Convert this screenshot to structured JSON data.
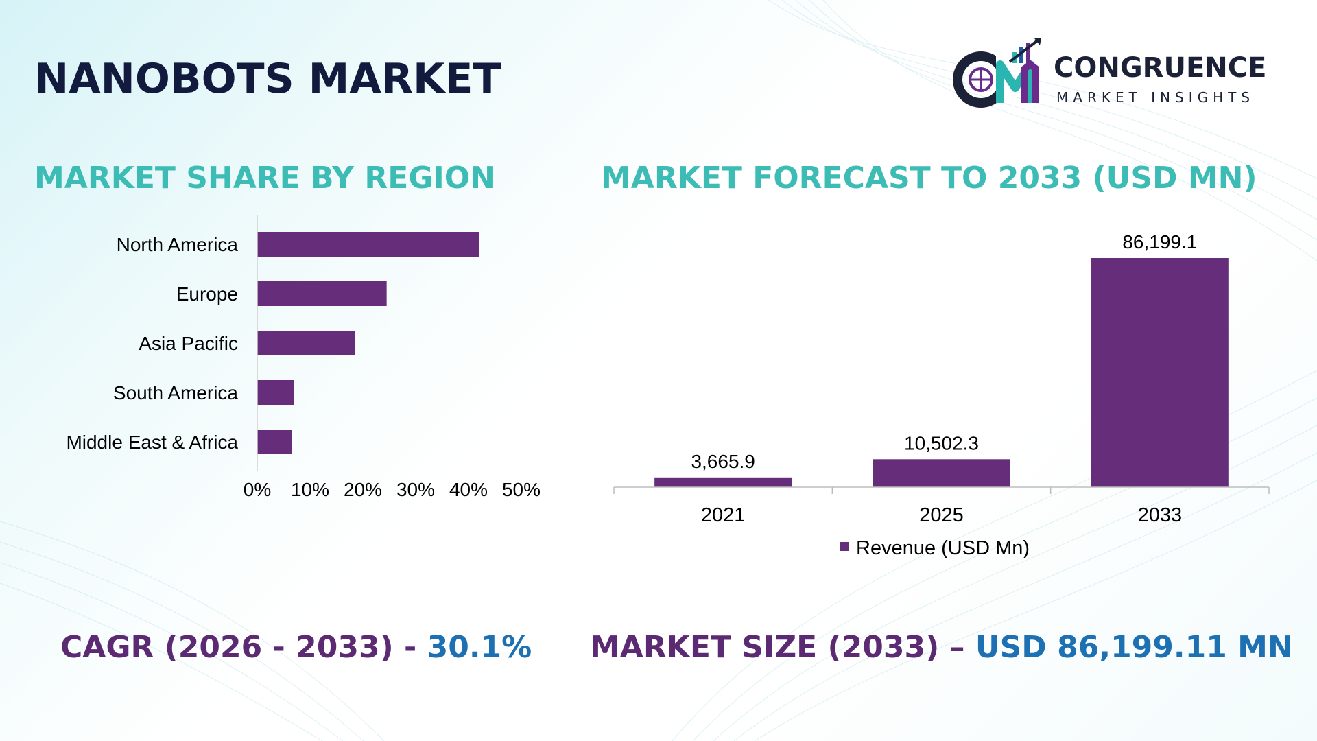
{
  "title": "NANOBOTS MARKET",
  "logo": {
    "name": "CONGRUENCE",
    "subtitle": "MARKET INSIGHTS",
    "mark_text": "CM",
    "colors": {
      "dark": "#1b2238",
      "teal": "#2bb5b0",
      "purple": "#6a2c8c",
      "blue": "#1e5aa8"
    }
  },
  "region_section": {
    "title": "MARKET SHARE BY REGION"
  },
  "forecast_section": {
    "title": "MARKET FORECAST TO 2033 (USD MN)"
  },
  "footer": {
    "cagr_label": "CAGR (2026 - 2033) - ",
    "cagr_value": "30.1%",
    "market_size_label": "MARKET SIZE (2033) – ",
    "market_size_value": "USD 86,199.11 MN"
  },
  "colors": {
    "bar": "#652d7a",
    "heading_teal": "#3cbcb4",
    "stat_purple": "#5b2a72",
    "stat_blue": "#1d70b2",
    "title_navy": "#121a3e"
  },
  "chart_data": [
    {
      "type": "bar",
      "orientation": "horizontal",
      "categories": [
        "North America",
        "Europe",
        "Asia Pacific",
        "South America",
        "Middle East & Africa"
      ],
      "values": [
        42,
        24.5,
        18.5,
        7,
        6.6
      ],
      "unit": "%",
      "xlim": [
        0,
        50
      ],
      "xticks": [
        "0%",
        "10%",
        "20%",
        "30%",
        "40%",
        "50%"
      ],
      "grid": false,
      "legend": "none",
      "color": "#652d7a"
    },
    {
      "type": "bar",
      "orientation": "vertical",
      "categories": [
        "2021",
        "2025",
        "2033"
      ],
      "series": [
        {
          "name": "Revenue (USD Mn)",
          "values": [
            3665.9,
            10502.3,
            86199.1
          ],
          "labels": [
            "3,665.9",
            "10,502.3",
            "86,199.1"
          ]
        }
      ],
      "ylim": [
        0,
        86199.1
      ],
      "grid": false,
      "legend": "bottom",
      "color": "#652d7a"
    }
  ]
}
